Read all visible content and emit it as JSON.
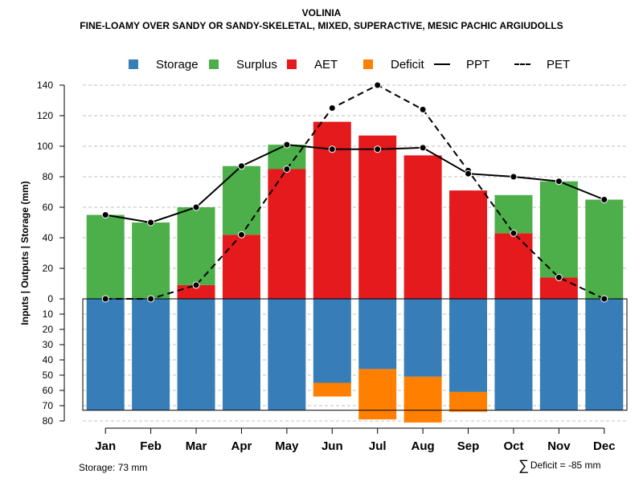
{
  "chart_data": {
    "type": "bar",
    "title": "VOLINIA",
    "subtitle": "FINE-LOAMY OVER SANDY OR SANDY-SKELETAL, MIXED, SUPERACTIVE, MESIC PACHIC ARGIUDOLLS",
    "ylabel": "Inputs | Outputs | Storage    (mm)",
    "xlabel": "",
    "categories": [
      "Jan",
      "Feb",
      "Mar",
      "Apr",
      "May",
      "Jun",
      "Jul",
      "Aug",
      "Sep",
      "Oct",
      "Nov",
      "Dec"
    ],
    "ylim_top": [
      0,
      140
    ],
    "yticks_top": [
      0,
      20,
      40,
      60,
      80,
      100,
      120,
      140
    ],
    "ylim_bottom": [
      0,
      80
    ],
    "yticks_bottom": [
      0,
      10,
      20,
      30,
      40,
      50,
      60,
      70,
      80
    ],
    "series": [
      {
        "name": "AET",
        "color": "#e41a1c",
        "values": [
          0,
          0,
          9,
          42,
          85,
          116,
          107,
          94,
          71,
          43,
          14,
          0
        ]
      },
      {
        "name": "Surplus",
        "color": "#4daf4a",
        "values": [
          55,
          50,
          51,
          45,
          16,
          0,
          0,
          0,
          0,
          25,
          63,
          65
        ]
      },
      {
        "name": "Storage",
        "color": "#377eb8",
        "values": [
          73,
          73,
          73,
          73,
          73,
          55,
          46,
          51,
          61,
          73,
          73,
          73
        ]
      },
      {
        "name": "Deficit",
        "color": "#ff7f00",
        "values": [
          0,
          0,
          0,
          0,
          0,
          9,
          33,
          30,
          13,
          0,
          0,
          0
        ]
      },
      {
        "name": "PPT",
        "color": "#000000",
        "values": [
          55,
          50,
          60,
          87,
          101,
          98,
          98,
          99,
          82,
          80,
          77,
          65
        ]
      },
      {
        "name": "PET",
        "color": "#000000",
        "values": [
          0,
          0,
          9,
          42,
          85,
          125,
          140,
          124,
          84,
          43,
          14,
          0
        ]
      }
    ],
    "legend": [
      {
        "label": "Storage",
        "kind": "box",
        "color": "#377eb8"
      },
      {
        "label": "Surplus",
        "kind": "box",
        "color": "#4daf4a"
      },
      {
        "label": "AET",
        "kind": "box",
        "color": "#e41a1c"
      },
      {
        "label": "Deficit",
        "kind": "box",
        "color": "#ff7f00"
      },
      {
        "label": "PPT",
        "kind": "solid",
        "color": "#000000"
      },
      {
        "label": "PET",
        "kind": "dashed",
        "color": "#000000"
      }
    ],
    "legend_position": "top",
    "grid": true,
    "annotations": {
      "storage": "Storage: 73 mm",
      "deficit_sigma": "∑",
      "deficit": "Deficit = -85 mm"
    }
  }
}
